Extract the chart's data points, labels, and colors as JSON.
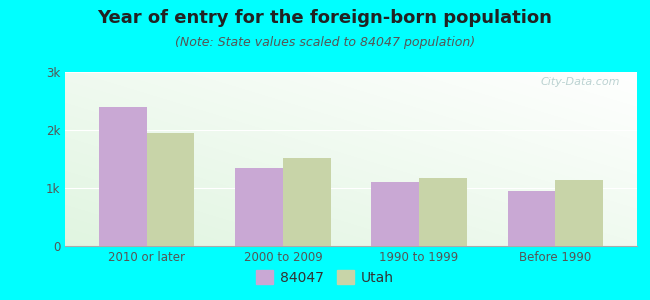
{
  "title": "Year of entry for the foreign-born population",
  "subtitle": "(Note: State values scaled to 84047 population)",
  "categories": [
    "2010 or later",
    "2000 to 2009",
    "1990 to 1999",
    "Before 1990"
  ],
  "values_84047": [
    2400,
    1350,
    1100,
    950
  ],
  "values_utah": [
    1950,
    1520,
    1180,
    1130
  ],
  "bar_color_84047": "#c9a8d4",
  "bar_color_utah": "#c8d4a8",
  "background_color": "#00ffff",
  "ylim": [
    0,
    3000
  ],
  "yticks": [
    0,
    1000,
    2000,
    3000
  ],
  "ytick_labels": [
    "0",
    "1k",
    "2k",
    "3k"
  ],
  "legend_84047": "84047",
  "legend_utah": "Utah",
  "bar_width": 0.35,
  "watermark": "⌘ City-Data.com",
  "title_fontsize": 13,
  "subtitle_fontsize": 9,
  "tick_fontsize": 8.5,
  "legend_fontsize": 10
}
